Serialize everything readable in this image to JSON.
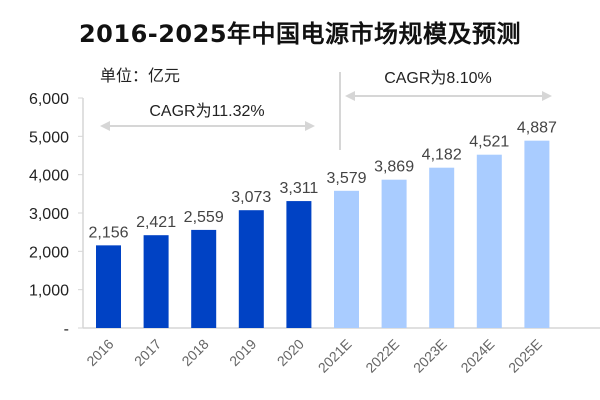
{
  "chart_data": {
    "type": "bar",
    "title": "2016-2025年中国电源市场规模及预测",
    "unit_label": "单位：亿元",
    "categories": [
      "2016",
      "2017",
      "2018",
      "2019",
      "2020",
      "2021E",
      "2022E",
      "2023E",
      "2024E",
      "2025E"
    ],
    "values": [
      2156,
      2421,
      2559,
      3073,
      3311,
      3579,
      3869,
      4182,
      4521,
      4887
    ],
    "value_labels": [
      "2,156",
      "2,421",
      "2,559",
      "3,073",
      "3,311",
      "3,579",
      "3,869",
      "4,182",
      "4,521",
      "4,887"
    ],
    "ylim": [
      0,
      6000
    ],
    "yticks": [
      0,
      1000,
      2000,
      3000,
      4000,
      5000,
      6000
    ],
    "ytick_labels": [
      "-",
      "1,000",
      "2,000",
      "3,000",
      "4,000",
      "5,000",
      "6,000"
    ],
    "grid": false,
    "colors": {
      "actual": "#0042C4",
      "forecast": "#A9CCFF",
      "annotation": "#D6D6D6"
    },
    "annotations": [
      {
        "text": "CAGR为11.32%",
        "span": [
          "2016",
          "2020"
        ]
      },
      {
        "text": "CAGR为8.10%",
        "span": [
          "2021E",
          "2025E"
        ]
      }
    ]
  }
}
